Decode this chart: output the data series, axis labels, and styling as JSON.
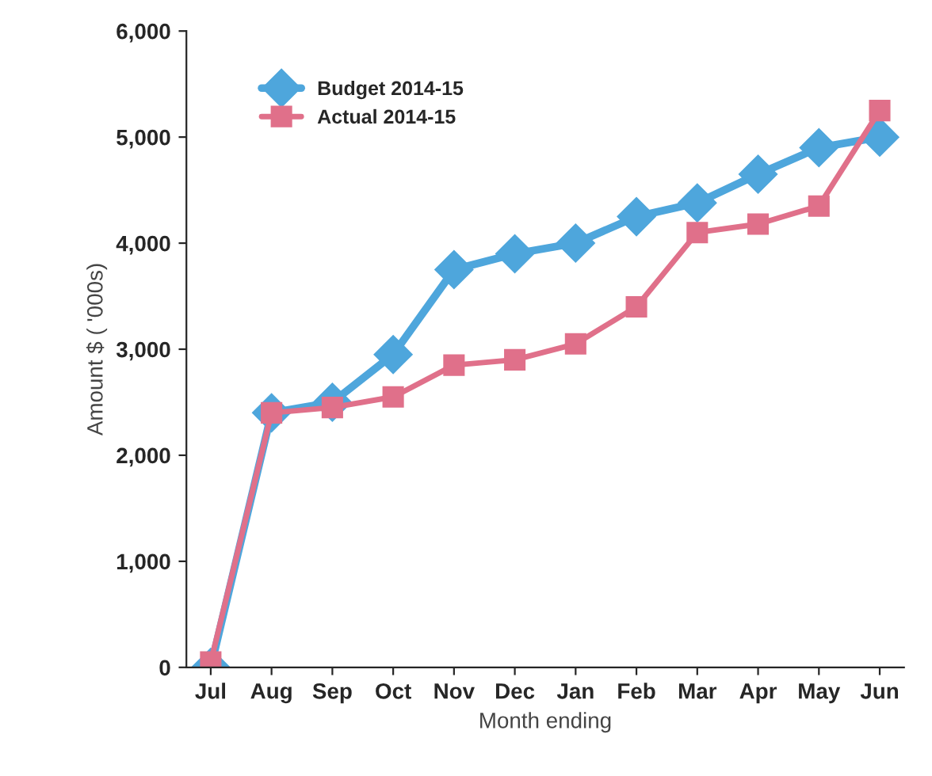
{
  "chart_data": {
    "type": "line",
    "xlabel": "Month ending",
    "ylabel": "Amount $ ( '000s)",
    "categories": [
      "Jul",
      "Aug",
      "Sep",
      "Oct",
      "Nov",
      "Dec",
      "Jan",
      "Feb",
      "Mar",
      "Apr",
      "May",
      "Jun"
    ],
    "series": [
      {
        "name": "Budget 2014-15",
        "color": "#4ea6dc",
        "marker": "diamond",
        "values": [
          0,
          2400,
          2500,
          2950,
          3750,
          3900,
          4000,
          4250,
          4380,
          4650,
          4900,
          5000
        ]
      },
      {
        "name": "Actual 2014-15",
        "color": "#e0708a",
        "marker": "square",
        "values": [
          50,
          2400,
          2450,
          2550,
          2850,
          2900,
          3050,
          3400,
          4100,
          4180,
          4350,
          5250
        ]
      }
    ],
    "ylim": [
      0,
      6000
    ],
    "yticks": [
      {
        "value": 0,
        "label": "0"
      },
      {
        "value": 1000,
        "label": "1,000"
      },
      {
        "value": 2000,
        "label": "2,000"
      },
      {
        "value": 3000,
        "label": "3,000"
      },
      {
        "value": 4000,
        "label": "4,000"
      },
      {
        "value": 5000,
        "label": "5,000"
      },
      {
        "value": 6000,
        "label": "6,000"
      }
    ],
    "grid": false,
    "legend": "top left",
    "line_style": "solid"
  }
}
